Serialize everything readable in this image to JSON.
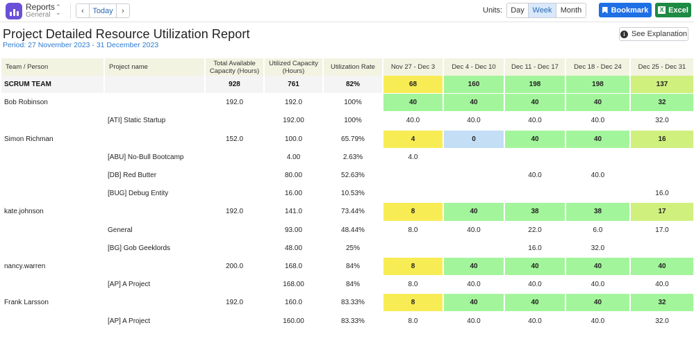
{
  "app": {
    "title": "Reports",
    "subtitle": "General"
  },
  "nav": {
    "prev": "‹",
    "today": "Today",
    "next": "›"
  },
  "units": {
    "label": "Units:",
    "options": [
      "Day",
      "Week",
      "Month"
    ],
    "selected": "Week"
  },
  "actions": {
    "bookmark": "Bookmark",
    "excel": "Excel",
    "explain": "See Explanation"
  },
  "report": {
    "title": "Project Detailed Resource Utilization Report",
    "period": "Period: 27 November 2023 - 31 December 2023"
  },
  "table": {
    "headers": [
      "Team / Person",
      "Project name",
      "Total Available Capacity (Hours)",
      "Utilized Capacity (Hours)",
      "Utilization Rate",
      "Nov 27 - Dec 3",
      "Dec 4 - Dec 10",
      "Dec 11 - Dec 17",
      "Dec 18 - Dec 24",
      "Dec 25 - Dec 31"
    ],
    "rows": [
      {
        "kind": "team",
        "name": "SCRUM TEAM",
        "project": "",
        "available": "928",
        "utilized": "761",
        "rate": "82%",
        "weeks": [
          "68",
          "160",
          "198",
          "198",
          "137"
        ],
        "colors": [
          "y",
          "g",
          "g",
          "g",
          "l"
        ]
      },
      {
        "kind": "person",
        "name": "Bob Robinson",
        "project": "",
        "available": "192.0",
        "utilized": "192.0",
        "rate": "100%",
        "weeks": [
          "40",
          "40",
          "40",
          "40",
          "32"
        ],
        "colors": [
          "g",
          "g",
          "g",
          "g",
          "g"
        ]
      },
      {
        "kind": "project",
        "name": "",
        "project": "[ATI] Static Startup",
        "available": "",
        "utilized": "192.00",
        "rate": "100%",
        "weeks": [
          "40.0",
          "40.0",
          "40.0",
          "40.0",
          "32.0"
        ],
        "colors": [
          "",
          "",
          "",
          "",
          ""
        ]
      },
      {
        "kind": "person",
        "name": "Simon Richman",
        "project": "",
        "available": "152.0",
        "utilized": "100.0",
        "rate": "65.79%",
        "weeks": [
          "4",
          "0",
          "40",
          "40",
          "16"
        ],
        "colors": [
          "y",
          "b",
          "g",
          "g",
          "l"
        ]
      },
      {
        "kind": "project",
        "name": "",
        "project": "[ABU] No-Bull Bootcamp",
        "available": "",
        "utilized": "4.00",
        "rate": "2.63%",
        "weeks": [
          "4.0",
          "",
          "",
          "",
          ""
        ],
        "colors": [
          "",
          "",
          "",
          "",
          ""
        ]
      },
      {
        "kind": "project",
        "name": "",
        "project": "[DB] Red Butter",
        "available": "",
        "utilized": "80.00",
        "rate": "52.63%",
        "weeks": [
          "",
          "",
          "40.0",
          "40.0",
          ""
        ],
        "colors": [
          "",
          "",
          "",
          "",
          ""
        ]
      },
      {
        "kind": "project",
        "name": "",
        "project": "[BUG] Debug Entity",
        "available": "",
        "utilized": "16.00",
        "rate": "10.53%",
        "weeks": [
          "",
          "",
          "",
          "",
          "16.0"
        ],
        "colors": [
          "",
          "",
          "",
          "",
          ""
        ]
      },
      {
        "kind": "person",
        "name": "kate.johnson",
        "project": "",
        "available": "192.0",
        "utilized": "141.0",
        "rate": "73.44%",
        "weeks": [
          "8",
          "40",
          "38",
          "38",
          "17"
        ],
        "colors": [
          "y",
          "g",
          "g",
          "g",
          "l"
        ]
      },
      {
        "kind": "project",
        "name": "",
        "project": "General",
        "available": "",
        "utilized": "93.00",
        "rate": "48.44%",
        "weeks": [
          "8.0",
          "40.0",
          "22.0",
          "6.0",
          "17.0"
        ],
        "colors": [
          "",
          "",
          "",
          "",
          ""
        ]
      },
      {
        "kind": "project",
        "name": "",
        "project": "[BG] Gob Geeklords",
        "available": "",
        "utilized": "48.00",
        "rate": "25%",
        "weeks": [
          "",
          "",
          "16.0",
          "32.0",
          ""
        ],
        "colors": [
          "",
          "",
          "",
          "",
          ""
        ]
      },
      {
        "kind": "person",
        "name": "nancy.warren",
        "project": "",
        "available": "200.0",
        "utilized": "168.0",
        "rate": "84%",
        "weeks": [
          "8",
          "40",
          "40",
          "40",
          "40"
        ],
        "colors": [
          "y",
          "g",
          "g",
          "g",
          "g"
        ]
      },
      {
        "kind": "project",
        "name": "",
        "project": "[AP] A Project",
        "available": "",
        "utilized": "168.00",
        "rate": "84%",
        "weeks": [
          "8.0",
          "40.0",
          "40.0",
          "40.0",
          "40.0"
        ],
        "colors": [
          "",
          "",
          "",
          "",
          ""
        ]
      },
      {
        "kind": "person",
        "name": "Frank Larsson",
        "project": "",
        "available": "192.0",
        "utilized": "160.0",
        "rate": "83.33%",
        "weeks": [
          "8",
          "40",
          "40",
          "40",
          "32"
        ],
        "colors": [
          "y",
          "g",
          "g",
          "g",
          "g"
        ]
      },
      {
        "kind": "project",
        "name": "",
        "project": "[AP] A Project",
        "available": "",
        "utilized": "160.00",
        "rate": "83.33%",
        "weeks": [
          "8.0",
          "40.0",
          "40.0",
          "40.0",
          "32.0"
        ],
        "colors": [
          "",
          "",
          "",
          "",
          ""
        ]
      }
    ]
  }
}
